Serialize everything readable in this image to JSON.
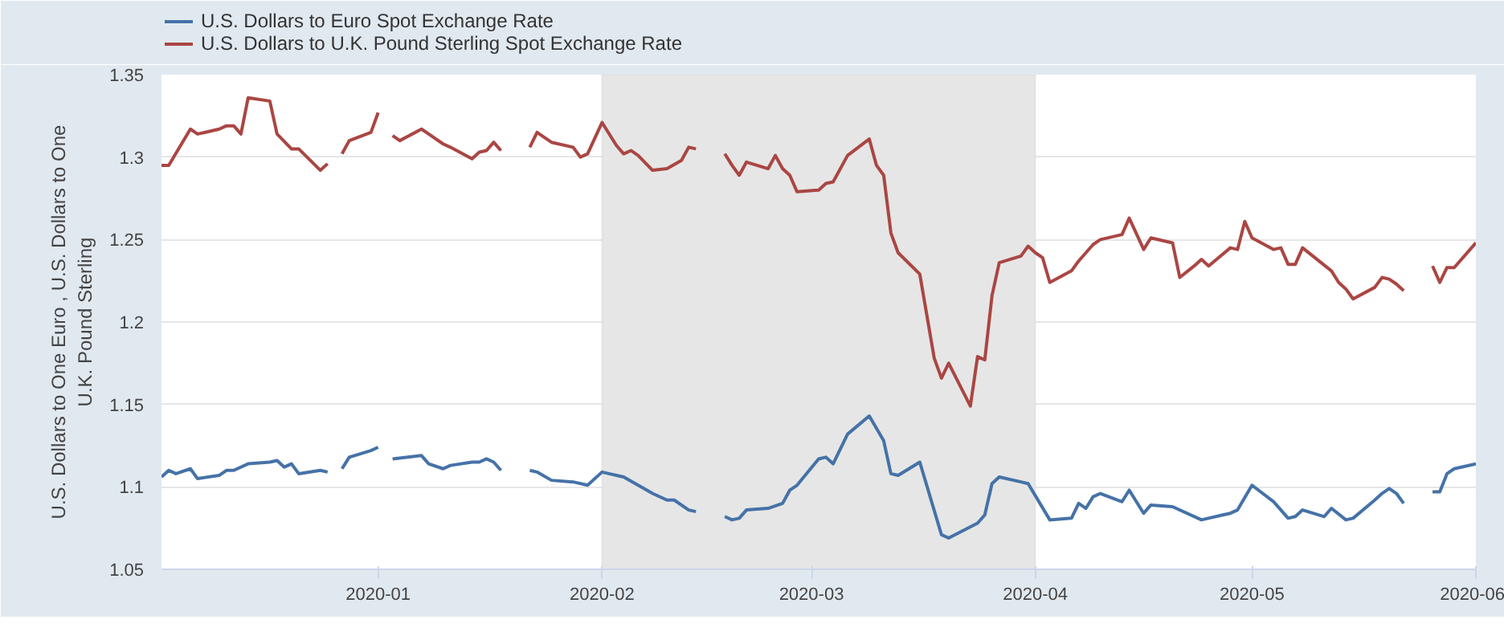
{
  "chart_data": {
    "type": "line",
    "ylabel": "U.S. Dollars to One Euro , U.S. Dollars to One U.K. Pound Sterling",
    "xlim": [
      "2019-12-02",
      "2020-06-01"
    ],
    "xticks": [
      {
        "value": "2020-01-01",
        "label": "2020-01"
      },
      {
        "value": "2020-02-01",
        "label": "2020-02"
      },
      {
        "value": "2020-03-01",
        "label": "2020-03"
      },
      {
        "value": "2020-04-01",
        "label": "2020-04"
      },
      {
        "value": "2020-05-01",
        "label": "2020-05"
      },
      {
        "value": "2020-06-01",
        "label": "2020-06"
      }
    ],
    "ylim": [
      1.05,
      1.35
    ],
    "yticks": [
      1.05,
      1.1,
      1.15,
      1.2,
      1.25,
      1.3,
      1.35
    ],
    "grid": "y",
    "legend": "top left",
    "bands": [
      {
        "axis": "x",
        "from": "2020-02-01",
        "to": "2020-04-01",
        "color": "#e6e6e6"
      }
    ],
    "series": [
      {
        "name": "U.S. Dollars to Euro Spot Exchange Rate",
        "color": "#4572a7",
        "x": [
          "2019-12-02",
          "2019-12-03",
          "2019-12-04",
          "2019-12-06",
          "2019-12-07",
          "2019-12-10",
          "2019-12-11",
          "2019-12-12",
          "2019-12-14",
          "2019-12-17",
          "2019-12-18",
          "2019-12-19",
          "2019-12-20",
          "2019-12-21",
          "2019-12-24",
          "2019-12-25",
          "2019-12-26",
          "2019-12-27",
          "2019-12-28",
          "2019-12-31",
          "2020-01-01",
          "2020-01-02",
          "2020-01-03",
          "2020-01-07",
          "2020-01-08",
          "2020-01-10",
          "2020-01-11",
          "2020-01-14",
          "2020-01-15",
          "2020-01-16",
          "2020-01-17",
          "2020-01-18",
          "2020-01-20",
          "2020-01-22",
          "2020-01-23",
          "2020-01-25",
          "2020-01-28",
          "2020-01-30",
          "2020-02-01",
          "2020-02-03",
          "2020-02-04",
          "2020-02-06",
          "2020-02-08",
          "2020-02-10",
          "2020-02-11",
          "2020-02-13",
          "2020-02-14",
          "2020-02-16",
          "2020-02-18",
          "2020-02-19",
          "2020-02-20",
          "2020-02-21",
          "2020-02-24",
          "2020-02-26",
          "2020-02-27",
          "2020-02-28",
          "2020-03-02",
          "2020-03-03",
          "2020-03-04",
          "2020-03-06",
          "2020-03-09",
          "2020-03-11",
          "2020-03-12",
          "2020-03-13",
          "2020-03-16",
          "2020-03-19",
          "2020-03-20",
          "2020-03-24",
          "2020-03-25",
          "2020-03-26",
          "2020-03-27",
          "2020-03-30",
          "2020-03-31",
          "2020-04-03",
          "2020-04-06",
          "2020-04-07",
          "2020-04-08",
          "2020-04-09",
          "2020-04-10",
          "2020-04-13",
          "2020-04-14",
          "2020-04-16",
          "2020-04-17",
          "2020-04-20",
          "2020-04-24",
          "2020-04-28",
          "2020-04-29",
          "2020-05-01",
          "2020-05-04",
          "2020-05-06",
          "2020-05-07",
          "2020-05-08",
          "2020-05-11",
          "2020-05-12",
          "2020-05-14",
          "2020-05-15",
          "2020-05-18",
          "2020-05-19",
          "2020-05-20",
          "2020-05-21",
          "2020-05-22",
          "2020-05-24",
          "2020-05-26",
          "2020-05-27",
          "2020-05-28",
          "2020-05-29",
          "2020-06-01"
        ],
        "values": [
          1.106,
          1.11,
          1.108,
          1.111,
          1.105,
          1.107,
          1.11,
          1.11,
          1.114,
          1.115,
          1.116,
          1.112,
          1.114,
          1.108,
          1.11,
          1.109,
          null,
          1.111,
          1.118,
          1.122,
          1.124,
          null,
          1.117,
          1.119,
          1.114,
          1.111,
          1.113,
          1.115,
          1.115,
          1.117,
          1.115,
          1.11,
          null,
          1.11,
          1.109,
          1.104,
          1.103,
          1.101,
          1.109,
          1.107,
          1.106,
          1.101,
          1.096,
          1.092,
          1.092,
          1.086,
          1.085,
          null,
          1.082,
          1.08,
          1.081,
          1.086,
          1.087,
          1.09,
          1.098,
          1.101,
          1.117,
          1.118,
          1.114,
          1.132,
          1.143,
          1.128,
          1.108,
          1.107,
          1.115,
          1.071,
          1.069,
          1.078,
          1.083,
          1.102,
          1.106,
          1.103,
          1.102,
          1.08,
          1.081,
          1.09,
          1.087,
          1.094,
          1.096,
          1.091,
          1.098,
          1.084,
          1.089,
          1.088,
          1.08,
          1.084,
          1.086,
          1.101,
          1.091,
          1.081,
          1.082,
          1.086,
          1.082,
          1.087,
          1.08,
          1.081,
          1.092,
          1.096,
          1.099,
          1.096,
          1.09,
          null,
          1.097,
          1.097,
          1.108,
          1.111,
          1.114
        ]
      },
      {
        "name": "U.S. Dollars to U.K. Pound Sterling Spot Exchange Rate",
        "color": "#aa4643",
        "x": [
          "2019-12-02",
          "2019-12-03",
          "2019-12-06",
          "2019-12-07",
          "2019-12-10",
          "2019-12-11",
          "2019-12-12",
          "2019-12-13",
          "2019-12-14",
          "2019-12-17",
          "2019-12-18",
          "2019-12-20",
          "2019-12-21",
          "2019-12-24",
          "2019-12-25",
          "2019-12-26",
          "2019-12-27",
          "2019-12-28",
          "2019-12-31",
          "2020-01-01",
          "2020-01-02",
          "2020-01-03",
          "2020-01-04",
          "2020-01-07",
          "2020-01-08",
          "2020-01-10",
          "2020-01-11",
          "2020-01-14",
          "2020-01-15",
          "2020-01-16",
          "2020-01-17",
          "2020-01-18",
          "2020-01-20",
          "2020-01-22",
          "2020-01-23",
          "2020-01-25",
          "2020-01-28",
          "2020-01-29",
          "2020-01-30",
          "2020-02-01",
          "2020-02-03",
          "2020-02-04",
          "2020-02-05",
          "2020-02-06",
          "2020-02-08",
          "2020-02-10",
          "2020-02-12",
          "2020-02-13",
          "2020-02-14",
          "2020-02-16",
          "2020-02-18",
          "2020-02-19",
          "2020-02-20",
          "2020-02-21",
          "2020-02-24",
          "2020-02-25",
          "2020-02-26",
          "2020-02-27",
          "2020-02-28",
          "2020-03-02",
          "2020-03-03",
          "2020-03-04",
          "2020-03-06",
          "2020-03-09",
          "2020-03-10",
          "2020-03-11",
          "2020-03-12",
          "2020-03-13",
          "2020-03-16",
          "2020-03-18",
          "2020-03-19",
          "2020-03-20",
          "2020-03-23",
          "2020-03-24",
          "2020-03-25",
          "2020-03-26",
          "2020-03-27",
          "2020-03-30",
          "2020-03-31",
          "2020-04-01",
          "2020-04-02",
          "2020-04-03",
          "2020-04-06",
          "2020-04-07",
          "2020-04-09",
          "2020-04-10",
          "2020-04-13",
          "2020-04-14",
          "2020-04-16",
          "2020-04-17",
          "2020-04-20",
          "2020-04-21",
          "2020-04-23",
          "2020-04-24",
          "2020-04-25",
          "2020-04-28",
          "2020-04-29",
          "2020-04-30",
          "2020-05-01",
          "2020-05-04",
          "2020-05-05",
          "2020-05-06",
          "2020-05-07",
          "2020-05-08",
          "2020-05-12",
          "2020-05-13",
          "2020-05-14",
          "2020-05-15",
          "2020-05-18",
          "2020-05-19",
          "2020-05-20",
          "2020-05-21",
          "2020-05-22",
          "2020-05-24",
          "2020-05-26",
          "2020-05-27",
          "2020-05-28",
          "2020-05-29",
          "2020-06-01"
        ],
        "values": [
          1.295,
          1.295,
          1.317,
          1.314,
          1.317,
          1.319,
          1.319,
          1.314,
          1.336,
          1.334,
          1.314,
          1.305,
          1.305,
          1.292,
          1.296,
          null,
          1.302,
          1.31,
          1.315,
          1.327,
          null,
          1.313,
          1.31,
          1.317,
          1.314,
          1.308,
          1.306,
          1.299,
          1.303,
          1.304,
          1.309,
          1.304,
          null,
          1.306,
          1.315,
          1.309,
          1.306,
          1.3,
          1.302,
          1.321,
          1.307,
          1.302,
          1.304,
          1.301,
          1.292,
          1.293,
          1.298,
          1.306,
          1.305,
          null,
          1.302,
          1.295,
          1.289,
          1.297,
          1.293,
          1.301,
          1.293,
          1.289,
          1.279,
          1.28,
          1.284,
          1.285,
          1.301,
          1.311,
          1.295,
          1.289,
          1.254,
          1.242,
          1.229,
          1.178,
          1.166,
          1.175,
          1.149,
          1.179,
          1.177,
          1.216,
          1.236,
          1.24,
          1.246,
          1.242,
          1.239,
          1.224,
          1.231,
          1.237,
          1.247,
          1.25,
          1.253,
          1.263,
          1.244,
          1.251,
          1.248,
          1.227,
          1.234,
          1.238,
          1.234,
          1.245,
          1.244,
          1.261,
          1.251,
          1.244,
          1.245,
          1.235,
          1.235,
          1.245,
          1.231,
          1.224,
          1.22,
          1.214,
          1.221,
          1.227,
          1.226,
          1.223,
          1.219,
          null,
          1.234,
          1.224,
          1.233,
          1.233,
          1.248
        ]
      }
    ]
  }
}
